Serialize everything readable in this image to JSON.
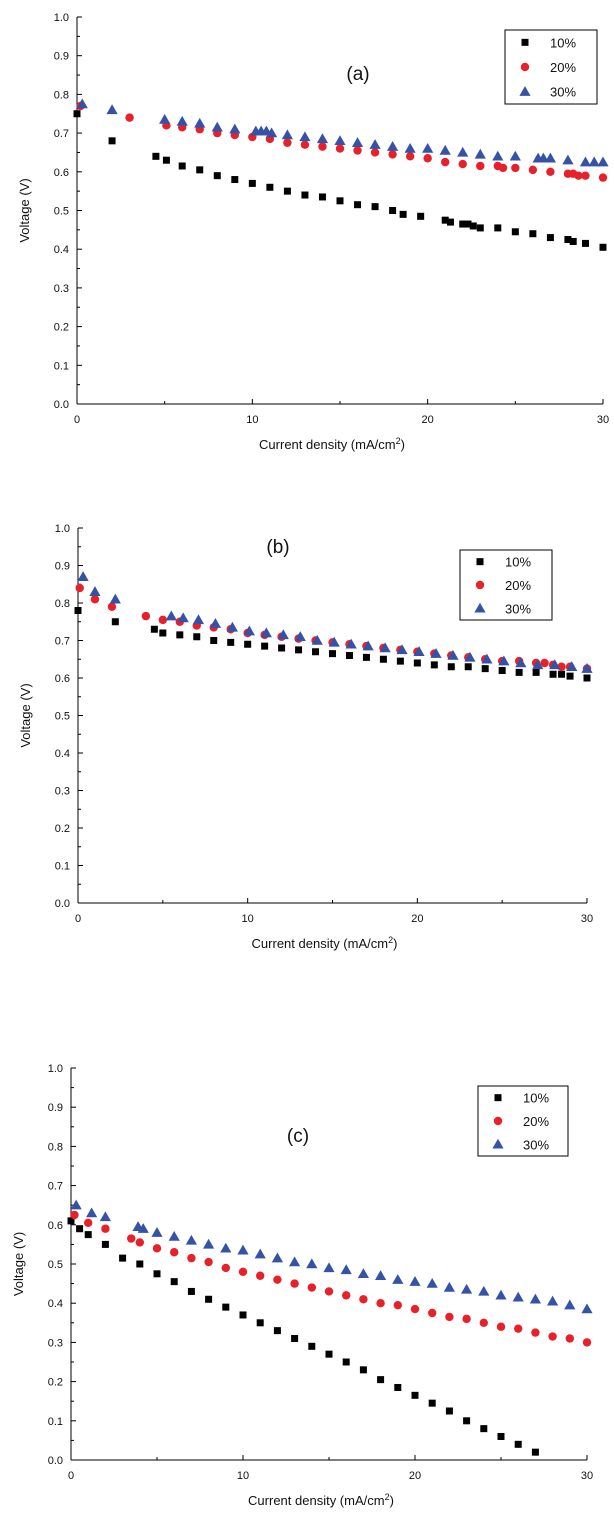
{
  "figure": {
    "colors": {
      "10%": "#000000",
      "20%": "#e8202a",
      "30%": "#3552a6"
    },
    "markers": {
      "10%": "square",
      "20%": "circle",
      "30%": "triangle"
    }
  },
  "chart_data": [
    {
      "type": "scatter",
      "title": "(a)",
      "xlabel": "Current density (mA/cm",
      "xlabel_sup": "2",
      "xlabel_end": ")",
      "ylabel": "Voltage (V)",
      "xlim": [
        0,
        30
      ],
      "ylim": [
        0,
        1.0
      ],
      "xticks": [
        "0",
        "10",
        "20",
        "30"
      ],
      "yticks": [
        "0.0",
        "0.1",
        "0.2",
        "0.3",
        "0.4",
        "0.5",
        "0.6",
        "0.7",
        "0.8",
        "0.9",
        "1.0"
      ],
      "legend_position": "top-right",
      "grid": false,
      "series": [
        {
          "name": "10%",
          "x": [
            0,
            2,
            4.5,
            5.1,
            6,
            7,
            8,
            9,
            10,
            11,
            12,
            13,
            14,
            15,
            16,
            17,
            18,
            18.6,
            19.6,
            21,
            21.3,
            22,
            22.3,
            22.6,
            23,
            24,
            25,
            26,
            27,
            28,
            28.3,
            29,
            30
          ],
          "y": [
            0.75,
            0.68,
            0.64,
            0.63,
            0.615,
            0.605,
            0.59,
            0.58,
            0.57,
            0.56,
            0.55,
            0.54,
            0.535,
            0.525,
            0.515,
            0.51,
            0.5,
            0.49,
            0.485,
            0.475,
            0.47,
            0.465,
            0.465,
            0.46,
            0.455,
            0.455,
            0.445,
            0.44,
            0.43,
            0.425,
            0.42,
            0.415,
            0.405
          ]
        },
        {
          "name": "20%",
          "x": [
            0.2,
            3,
            5.1,
            6,
            7,
            8,
            9,
            10,
            11,
            12,
            13,
            14,
            15,
            16,
            17,
            18,
            19,
            20,
            21,
            22,
            23,
            24,
            24.3,
            25,
            26,
            27,
            28,
            28.3,
            28.6,
            29,
            30
          ],
          "y": [
            0.77,
            0.74,
            0.72,
            0.715,
            0.71,
            0.7,
            0.695,
            0.69,
            0.685,
            0.675,
            0.67,
            0.665,
            0.66,
            0.655,
            0.65,
            0.645,
            0.64,
            0.635,
            0.625,
            0.62,
            0.615,
            0.615,
            0.61,
            0.61,
            0.605,
            0.6,
            0.595,
            0.595,
            0.59,
            0.59,
            0.585
          ]
        },
        {
          "name": "30%",
          "x": [
            0.3,
            2,
            5,
            6,
            7,
            8,
            9,
            10.2,
            10.5,
            10.8,
            11.1,
            12,
            13,
            14,
            15,
            16,
            17,
            18,
            19,
            20,
            21,
            22,
            23,
            24,
            25,
            26.3,
            26.6,
            27,
            28,
            29,
            29.5,
            30
          ],
          "y": [
            0.775,
            0.76,
            0.735,
            0.73,
            0.725,
            0.715,
            0.71,
            0.705,
            0.705,
            0.705,
            0.7,
            0.695,
            0.69,
            0.685,
            0.68,
            0.675,
            0.67,
            0.665,
            0.66,
            0.66,
            0.655,
            0.65,
            0.645,
            0.64,
            0.64,
            0.635,
            0.635,
            0.635,
            0.63,
            0.625,
            0.625,
            0.625
          ]
        }
      ]
    },
    {
      "type": "scatter",
      "title": "(b)",
      "xlabel": "Current density (mA/cm",
      "xlabel_sup": "2",
      "xlabel_end": ")",
      "ylabel": "Voltage (V)",
      "xlim": [
        0,
        30
      ],
      "ylim": [
        0,
        1.0
      ],
      "xticks": [
        "0",
        "10",
        "20",
        "30"
      ],
      "yticks": [
        "0.0",
        "0.1",
        "0.2",
        "0.3",
        "0.4",
        "0.5",
        "0.6",
        "0.7",
        "0.8",
        "0.9",
        "1.0"
      ],
      "legend_position": "top-right",
      "grid": false,
      "series": [
        {
          "name": "10%",
          "x": [
            0,
            2.2,
            4.5,
            5,
            6,
            7,
            8,
            9,
            10,
            11,
            12,
            13,
            14,
            15,
            16,
            17,
            18,
            19,
            20,
            21,
            22,
            23,
            24,
            25,
            26,
            27,
            28,
            28.5,
            29,
            30
          ],
          "y": [
            0.78,
            0.75,
            0.73,
            0.72,
            0.715,
            0.71,
            0.7,
            0.695,
            0.69,
            0.685,
            0.68,
            0.675,
            0.67,
            0.665,
            0.66,
            0.655,
            0.65,
            0.645,
            0.64,
            0.635,
            0.63,
            0.63,
            0.625,
            0.62,
            0.615,
            0.615,
            0.61,
            0.61,
            0.605,
            0.6
          ]
        },
        {
          "name": "20%",
          "x": [
            0.1,
            1,
            2,
            4,
            5,
            6,
            7,
            8,
            9,
            10,
            11,
            12,
            13,
            14,
            15,
            16,
            17,
            18,
            19,
            20,
            21,
            22,
            23,
            24,
            25,
            26,
            27,
            27.5,
            28,
            28.5,
            29,
            30
          ],
          "y": [
            0.84,
            0.81,
            0.79,
            0.765,
            0.755,
            0.75,
            0.74,
            0.735,
            0.73,
            0.72,
            0.715,
            0.71,
            0.705,
            0.7,
            0.695,
            0.69,
            0.685,
            0.68,
            0.675,
            0.67,
            0.665,
            0.66,
            0.655,
            0.65,
            0.645,
            0.645,
            0.64,
            0.64,
            0.635,
            0.63,
            0.63,
            0.625
          ]
        },
        {
          "name": "30%",
          "x": [
            0.3,
            1,
            2.2,
            5.5,
            6.2,
            7.1,
            8.1,
            9.1,
            10.1,
            11.1,
            12.1,
            13.1,
            14.1,
            15.1,
            16.1,
            17.1,
            18.1,
            19.1,
            20.1,
            21.1,
            22.1,
            23.1,
            24.1,
            25.1,
            26.1,
            27.1,
            28.1,
            29.1,
            30
          ],
          "y": [
            0.87,
            0.83,
            0.81,
            0.765,
            0.76,
            0.755,
            0.745,
            0.735,
            0.725,
            0.72,
            0.715,
            0.71,
            0.7,
            0.695,
            0.69,
            0.685,
            0.68,
            0.675,
            0.67,
            0.665,
            0.66,
            0.655,
            0.65,
            0.645,
            0.64,
            0.635,
            0.635,
            0.63,
            0.625
          ]
        }
      ]
    },
    {
      "type": "scatter",
      "title": "(c)",
      "xlabel": "Current density (mA/cm",
      "xlabel_sup": "2",
      "xlabel_end": ")",
      "ylabel": "Voltage (V)",
      "xlim": [
        0,
        30
      ],
      "ylim": [
        0,
        1.0
      ],
      "xticks": [
        "0",
        "10",
        "20",
        "30"
      ],
      "yticks": [
        "0.0",
        "0.1",
        "0.2",
        "0.3",
        "0.4",
        "0.5",
        "0.6",
        "0.7",
        "0.8",
        "0.9",
        "1.0"
      ],
      "legend_position": "top-right",
      "grid": false,
      "series": [
        {
          "name": "10%",
          "x": [
            0,
            0.5,
            1,
            2,
            3,
            4,
            5,
            6,
            7,
            8,
            9,
            10,
            11,
            12,
            13,
            14,
            15,
            16,
            17,
            18,
            19,
            20,
            21,
            22,
            23,
            24,
            25,
            26,
            27
          ],
          "y": [
            0.61,
            0.59,
            0.575,
            0.55,
            0.515,
            0.5,
            0.475,
            0.455,
            0.43,
            0.41,
            0.39,
            0.37,
            0.35,
            0.33,
            0.31,
            0.29,
            0.27,
            0.25,
            0.23,
            0.205,
            0.185,
            0.165,
            0.145,
            0.125,
            0.1,
            0.08,
            0.06,
            0.04,
            0.02
          ]
        },
        {
          "name": "20%",
          "x": [
            0.2,
            1,
            2,
            3.5,
            4,
            5,
            6,
            7,
            8,
            9,
            10,
            11,
            12,
            13,
            14,
            15,
            16,
            17,
            18,
            19,
            20,
            21,
            22,
            23,
            24,
            25,
            26,
            27,
            28,
            29,
            30
          ],
          "y": [
            0.625,
            0.605,
            0.59,
            0.565,
            0.555,
            0.54,
            0.53,
            0.515,
            0.505,
            0.49,
            0.48,
            0.47,
            0.46,
            0.45,
            0.44,
            0.43,
            0.42,
            0.41,
            0.4,
            0.395,
            0.385,
            0.375,
            0.365,
            0.36,
            0.35,
            0.34,
            0.335,
            0.325,
            0.315,
            0.31,
            0.3
          ]
        },
        {
          "name": "30%",
          "x": [
            0.3,
            1.2,
            2,
            3.9,
            4.2,
            5,
            6,
            7,
            8,
            9,
            10,
            11,
            12,
            13,
            14,
            15,
            16,
            17,
            18,
            19,
            20,
            21,
            22,
            23,
            24,
            25,
            26,
            27,
            28,
            29,
            30
          ],
          "y": [
            0.65,
            0.63,
            0.62,
            0.595,
            0.59,
            0.58,
            0.57,
            0.56,
            0.55,
            0.54,
            0.535,
            0.525,
            0.515,
            0.505,
            0.5,
            0.49,
            0.485,
            0.475,
            0.47,
            0.46,
            0.455,
            0.45,
            0.44,
            0.435,
            0.43,
            0.42,
            0.415,
            0.41,
            0.405,
            0.395,
            0.385
          ]
        }
      ]
    }
  ]
}
